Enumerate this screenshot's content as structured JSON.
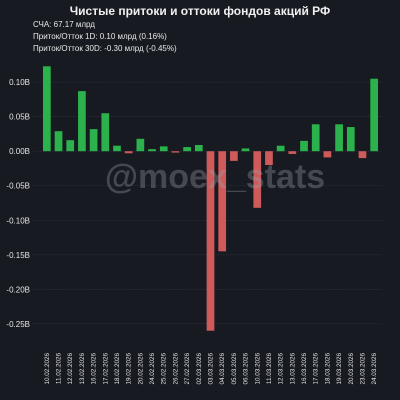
{
  "header": {
    "title": "Чистые притоки и оттоки фондов акций РФ",
    "line1": "СЧА: 67.17 млрд",
    "line2": "Приток/Отток 1D: 0.10 млрд (0.16%)",
    "line3": "Приток/Отток 30D: -0.30 млрд (-0.45%)"
  },
  "watermark": "@moex_stats",
  "colors": {
    "background": "#171a21",
    "positive": "#2bb24c",
    "negative": "#cf5a5a",
    "grid": "#3a3f4a",
    "text": "#e6e6e6"
  },
  "chart_data": {
    "type": "bar",
    "categories": [
      "10.02.2026",
      "11.02.2026",
      "12.02.2026",
      "13.02.2026",
      "16.02.2026",
      "17.02.2026",
      "18.02.2026",
      "19.02.2026",
      "20.02.2026",
      "24.02.2026",
      "25.02.2026",
      "26.02.2026",
      "27.02.2026",
      "02.03.2026",
      "03.03.2026",
      "04.03.2026",
      "05.03.2026",
      "06.03.2026",
      "10.03.2026",
      "11.03.2026",
      "12.03.2026",
      "13.03.2026",
      "16.03.2026",
      "17.03.2026",
      "18.03.2026",
      "19.03.2026",
      "20.03.2026",
      "23.03.2026",
      "24.03.2026"
    ],
    "values": [
      0.123,
      0.029,
      0.016,
      0.087,
      0.032,
      0.055,
      0.008,
      -0.003,
      0.018,
      0.003,
      0.007,
      -0.002,
      0.006,
      0.009,
      -0.26,
      -0.145,
      -0.014,
      0.004,
      -0.082,
      -0.02,
      0.008,
      -0.004,
      0.015,
      0.039,
      -0.009,
      0.039,
      0.035,
      -0.01,
      0.105
    ],
    "yticks": [
      0.1,
      0.05,
      0.0,
      -0.05,
      -0.1,
      -0.15,
      -0.2,
      -0.25
    ],
    "ytick_labels": [
      "0.10B",
      "0.05B",
      "0.00B",
      "-0.05B",
      "-0.10B",
      "-0.15B",
      "-0.20B",
      "-0.25B"
    ],
    "ylim": [
      -0.285,
      0.135
    ],
    "grid": true,
    "xlabel": "",
    "ylabel": ""
  }
}
